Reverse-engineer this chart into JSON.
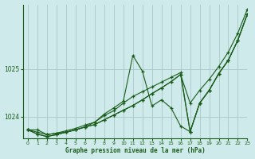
{
  "title": "Graphe pression niveau de la mer (hPa)",
  "bg_color": "#ceeaea",
  "grid_color": "#aac8c8",
  "line_color": "#1a5c1a",
  "xlim": [
    -0.5,
    23
  ],
  "ylim": [
    1023.55,
    1026.35
  ],
  "yticks": [
    1024,
    1025
  ],
  "xticks": [
    0,
    1,
    2,
    3,
    4,
    5,
    6,
    7,
    8,
    9,
    10,
    11,
    12,
    13,
    14,
    15,
    16,
    17,
    18,
    19,
    20,
    21,
    22,
    23
  ],
  "series": [
    [
      1023.72,
      1023.72,
      1023.62,
      1023.65,
      1023.67,
      1023.72,
      1023.78,
      1023.88,
      1024.05,
      1024.18,
      1024.32,
      1025.28,
      1024.95,
      1024.22,
      1024.35,
      1024.18,
      1023.8,
      1023.68,
      1024.28,
      1024.55,
      1024.9,
      1025.18,
      1025.6,
      1026.15
    ],
    [
      1023.72,
      1023.67,
      1023.62,
      1023.65,
      1023.7,
      1023.75,
      1023.82,
      1023.88,
      1024.02,
      1024.12,
      1024.28,
      1024.42,
      1024.52,
      1024.62,
      1024.72,
      1024.82,
      1024.92,
      1023.68,
      1024.28,
      1024.55,
      1024.9,
      1025.18,
      1025.6,
      1026.15
    ],
    [
      1023.72,
      1023.63,
      1023.58,
      1023.62,
      1023.67,
      1023.72,
      1023.78,
      1023.83,
      1023.93,
      1024.03,
      1024.13,
      1024.23,
      1024.35,
      1024.48,
      1024.6,
      1024.73,
      1024.88,
      1023.68,
      1024.28,
      1024.55,
      1024.9,
      1025.18,
      1025.6,
      1026.15
    ],
    [
      1023.72,
      1023.63,
      1023.58,
      1023.62,
      1023.67,
      1023.72,
      1023.78,
      1023.83,
      1023.93,
      1024.03,
      1024.13,
      1024.23,
      1024.35,
      1024.48,
      1024.6,
      1024.73,
      1024.88,
      1024.28,
      1024.55,
      1024.78,
      1025.05,
      1025.35,
      1025.75,
      1026.25
    ]
  ]
}
